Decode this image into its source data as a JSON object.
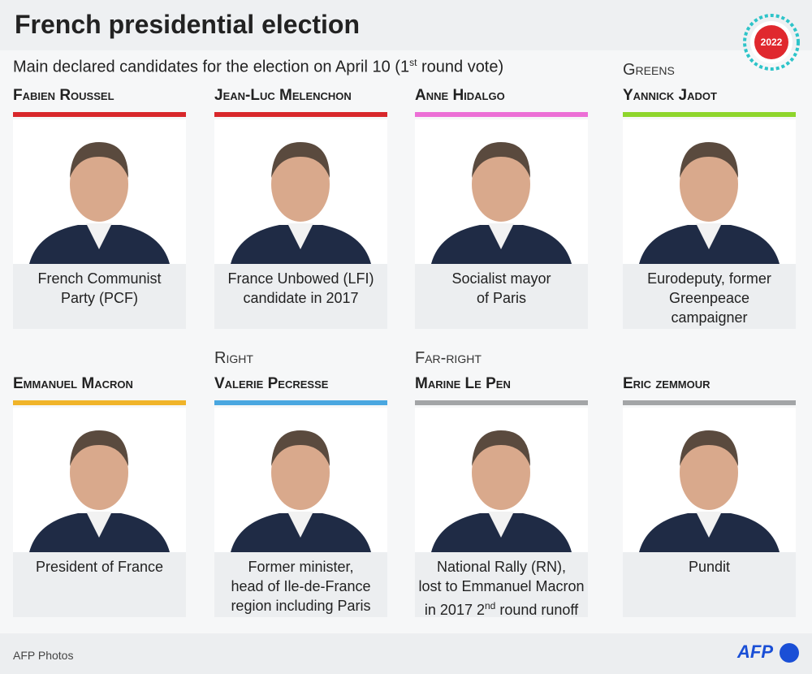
{
  "header": {
    "title": "French presidential election",
    "badge": "2022",
    "subtitle": [
      "Main declared candidates for the election on April 10 (1",
      "st",
      " round vote)"
    ]
  },
  "candidates": [
    {
      "name": "Fabien Roussel",
      "color": "#d8272b",
      "description": [
        [
          "French Communist"
        ],
        [
          "Party (PCF)"
        ]
      ]
    },
    {
      "name": "Jean-Luc Melenchon",
      "color": "#d8272b",
      "description": [
        [
          "France Unbowed (LFI)"
        ],
        [
          "candidate in 2017"
        ]
      ]
    },
    {
      "name": "Anne Hidalgo",
      "color": "#ec6fd6",
      "description": [
        [
          "Socialist mayor"
        ],
        [
          "of Paris"
        ]
      ]
    },
    {
      "group": "Greens",
      "name": "Yannick Jadot",
      "color": "#8ed52c",
      "description": [
        [
          "Eurodeputy, former"
        ],
        [
          "Greenpeace"
        ],
        [
          "campaigner"
        ]
      ]
    },
    {
      "name": "Emmanuel Macron",
      "color": "#f0b42a",
      "description": [
        [
          "President of France"
        ]
      ]
    },
    {
      "group": "Right",
      "name": "Valerie Pecresse",
      "color": "#4aa7e0",
      "description": [
        [
          "Former minister,"
        ],
        [
          "head of Ile-de-France"
        ],
        [
          "region including Paris"
        ]
      ]
    },
    {
      "group": "Far-right",
      "name": "Marine Le Pen",
      "color": "#a3a5a7",
      "description": [
        [
          "National Rally (RN),"
        ],
        [
          "lost to Emmanuel Macron"
        ],
        [
          "in 2017 2",
          "nd",
          " round runoff"
        ]
      ]
    },
    {
      "name": "Eric zemmour",
      "color": "#a3a5a7",
      "description": [
        [
          "Pundit"
        ]
      ]
    }
  ],
  "footer": {
    "credit": "AFP Photos",
    "logo": "AFP"
  }
}
